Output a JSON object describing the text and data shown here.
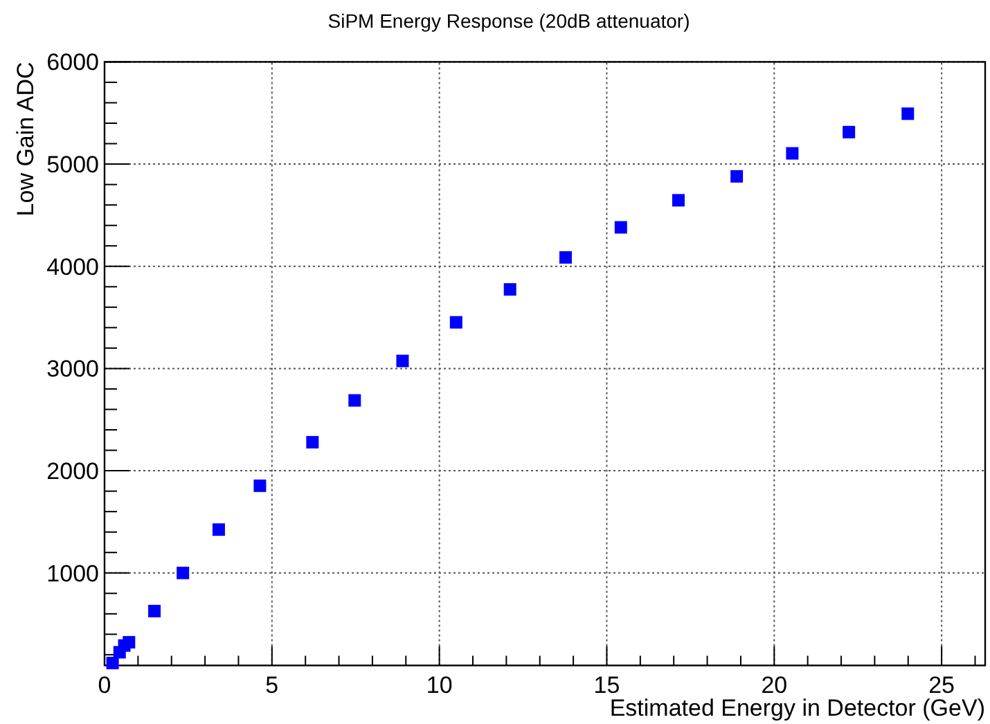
{
  "chart_data": {
    "type": "scatter",
    "title": "SiPM Energy Response (20dB attenuator)",
    "xlabel": "Estimated Energy in Detector (GeV)",
    "ylabel": "Low Gain ADC",
    "x": [
      0.24,
      0.45,
      0.59,
      0.73,
      1.49,
      2.34,
      3.41,
      4.64,
      6.21,
      7.47,
      8.9,
      10.5,
      12.11,
      13.77,
      15.42,
      17.14,
      18.88,
      20.54,
      22.23,
      23.99
    ],
    "series": [
      {
        "color": "#0000ff",
        "values": [
          119,
          224,
          290,
          322,
          627,
          1000,
          1424,
          1853,
          2279,
          2688,
          3074,
          3452,
          3774,
          4087,
          4381,
          4646,
          4880,
          5105,
          5313,
          5493
        ]
      }
    ],
    "xlim": [
      0,
      26.3
    ],
    "ylim": [
      95,
      6000
    ],
    "xticks": [
      0,
      {
        "value": 1,
        "label": null
      },
      {
        "value": 2,
        "label": null
      },
      {
        "value": 3,
        "label": null
      },
      {
        "value": 4,
        "label": null
      },
      5,
      {
        "value": 6,
        "label": null
      },
      {
        "value": 7,
        "label": null
      },
      {
        "value": 8,
        "label": null
      },
      {
        "value": 9,
        "label": null
      },
      10,
      {
        "value": 11,
        "label": null
      },
      {
        "value": 12,
        "label": null
      },
      {
        "value": 13,
        "label": null
      },
      {
        "value": 14,
        "label": null
      },
      15,
      {
        "value": 16,
        "label": null
      },
      {
        "value": 17,
        "label": null
      },
      {
        "value": 18,
        "label": null
      },
      {
        "value": 19,
        "label": null
      },
      20,
      {
        "value": 21,
        "label": null
      },
      {
        "value": 22,
        "label": null
      },
      {
        "value": 23,
        "label": null
      },
      {
        "value": 24,
        "label": null
      },
      25,
      {
        "value": 26,
        "label": null
      }
    ],
    "yticks": [
      {
        "value": 200,
        "label": null
      },
      {
        "value": 400,
        "label": null
      },
      {
        "value": 600,
        "label": null
      },
      {
        "value": 800,
        "label": null
      },
      1000,
      {
        "value": 1200,
        "label": null
      },
      {
        "value": 1400,
        "label": null
      },
      {
        "value": 1600,
        "label": null
      },
      {
        "value": 1800,
        "label": null
      },
      2000,
      {
        "value": 2200,
        "label": null
      },
      {
        "value": 2400,
        "label": null
      },
      {
        "value": 2600,
        "label": null
      },
      {
        "value": 2800,
        "label": null
      },
      3000,
      {
        "value": 3200,
        "label": null
      },
      {
        "value": 3400,
        "label": null
      },
      {
        "value": 3600,
        "label": null
      },
      {
        "value": 3800,
        "label": null
      },
      4000,
      {
        "value": 4200,
        "label": null
      },
      {
        "value": 4400,
        "label": null
      },
      {
        "value": 4600,
        "label": null
      },
      {
        "value": 4800,
        "label": null
      },
      5000,
      {
        "value": 5200,
        "label": null
      },
      {
        "value": 5400,
        "label": null
      },
      {
        "value": 5600,
        "label": null
      },
      {
        "value": 5800,
        "label": null
      },
      6000
    ],
    "grid": true,
    "marker": "square"
  }
}
